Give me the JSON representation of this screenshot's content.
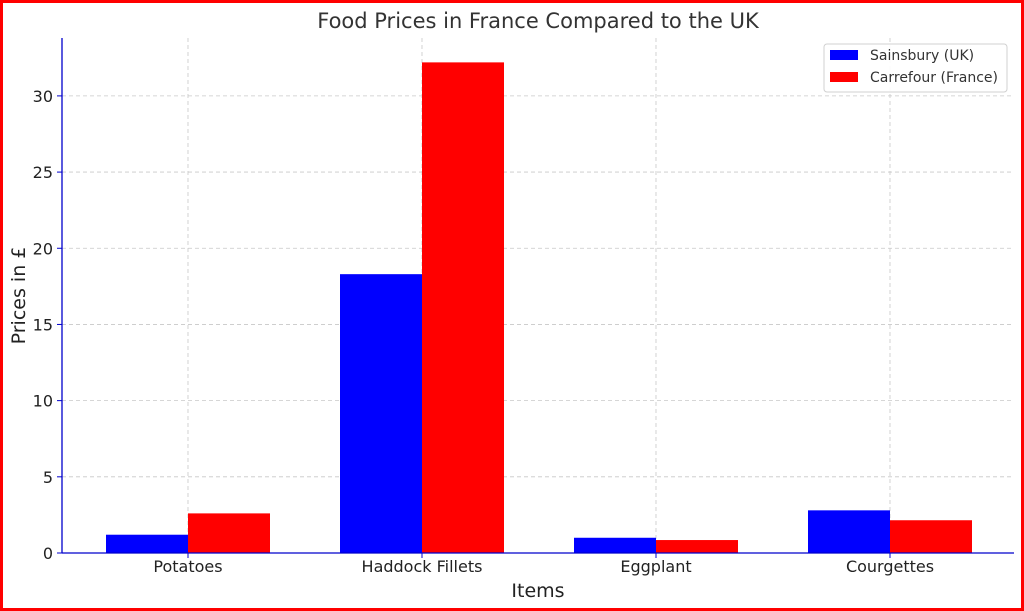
{
  "chart_data": {
    "type": "bar",
    "title": "Food Prices in France Compared to the UK",
    "xlabel": "Items",
    "ylabel": "Prices in £",
    "categories": [
      "Potatoes",
      "Haddock Fillets",
      "Eggplant",
      "Courgettes"
    ],
    "series": [
      {
        "name": "Sainsbury (UK)",
        "color": "#0000ff",
        "values": [
          1.2,
          18.3,
          1.0,
          2.8
        ]
      },
      {
        "name": "Carrefour (France)",
        "color": "#ff0000",
        "values": [
          2.6,
          32.2,
          0.85,
          2.15
        ]
      }
    ],
    "ylim": [
      0,
      33.8
    ],
    "yticks": [
      "0",
      "5",
      "10",
      "15",
      "20",
      "25",
      "30"
    ],
    "grid": true,
    "legend_position": "top-right",
    "frame_color": "#ff0000",
    "axis_color": "#0000cc"
  }
}
